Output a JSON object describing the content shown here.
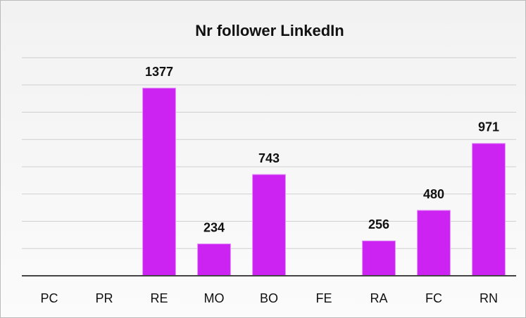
{
  "chart_data": {
    "type": "bar",
    "title": "Nr follower LinkedIn",
    "categories": [
      "PC",
      "PR",
      "RE",
      "MO",
      "BO",
      "FE",
      "RA",
      "FC",
      "RN"
    ],
    "values": [
      null,
      null,
      1377,
      234,
      743,
      null,
      256,
      480,
      971
    ],
    "color": "#cc22f2",
    "ylim": [
      0,
      1600
    ],
    "yticks": [
      0,
      200,
      400,
      600,
      800,
      1000,
      1200,
      1400,
      1600
    ],
    "grid": true
  }
}
